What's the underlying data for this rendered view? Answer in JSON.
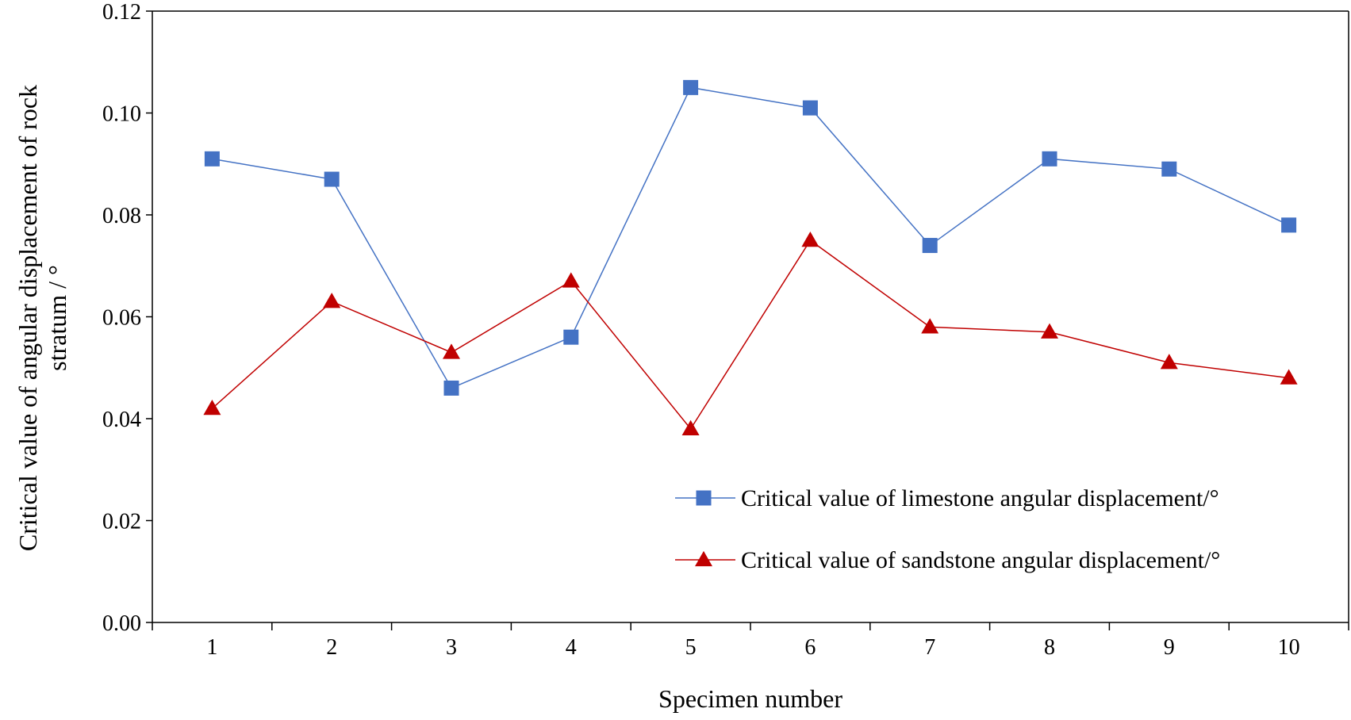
{
  "chart_data": {
    "type": "line",
    "title": "",
    "xlabel": "Specimen number",
    "ylabel_lines": [
      "Critical value of angular displacement of rock",
      "stratum / °"
    ],
    "categories": [
      "1",
      "2",
      "3",
      "4",
      "5",
      "6",
      "7",
      "8",
      "9",
      "10"
    ],
    "ylim": [
      0,
      0.12
    ],
    "yticks": [
      "0.00",
      "0.02",
      "0.04",
      "0.06",
      "0.08",
      "0.10",
      "0.12"
    ],
    "grid": false,
    "legend_position": "bottom-right",
    "series": [
      {
        "name": "Critical value of limestone angular displacement/°",
        "marker": "square",
        "color": "#4472C4",
        "values": [
          0.091,
          0.087,
          0.046,
          0.056,
          0.105,
          0.101,
          0.074,
          0.091,
          0.089,
          0.078
        ]
      },
      {
        "name": "Critical value of sandstone angular displacement/°",
        "marker": "triangle",
        "color": "#C00000",
        "values": [
          0.042,
          0.063,
          0.053,
          0.067,
          0.038,
          0.075,
          0.058,
          0.057,
          0.051,
          0.048
        ]
      }
    ]
  }
}
